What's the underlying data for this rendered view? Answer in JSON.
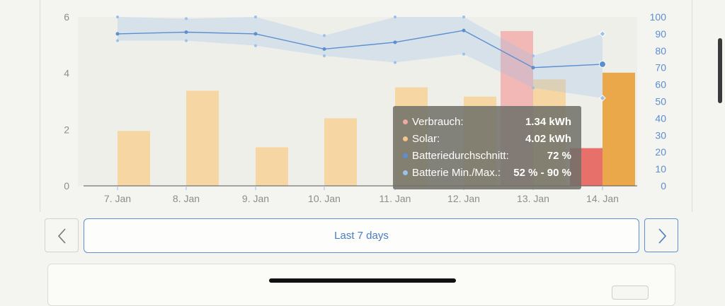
{
  "chart_data": {
    "type": "bar",
    "categories": [
      "7. Jan",
      "8. Jan",
      "9. Jan",
      "10. Jan",
      "11. Jan",
      "12. Jan",
      "13. Jan",
      "14. Jan"
    ],
    "y_left": {
      "ylim": [
        0,
        6
      ],
      "ticks": [
        0,
        2,
        4,
        6
      ]
    },
    "y_right": {
      "ylim": [
        0,
        100
      ],
      "ticks": [
        0,
        10,
        20,
        30,
        40,
        50,
        60,
        70,
        80,
        90,
        100
      ]
    },
    "grid": false,
    "series": [
      {
        "name": "Verbrauch",
        "kind": "bar",
        "axis": "left",
        "color": "#f2b8b6",
        "values": [
          0,
          0,
          0,
          0,
          0,
          0,
          5.5,
          1.34
        ]
      },
      {
        "name": "Solar",
        "kind": "bar",
        "axis": "left",
        "color": "#f6d7a4",
        "values": [
          1.95,
          3.38,
          1.37,
          2.4,
          3.5,
          3.17,
          3.78,
          4.02
        ]
      },
      {
        "name": "Batteriedurchschnitt",
        "kind": "line",
        "axis": "right",
        "color": "#5b8fd1",
        "values": [
          90,
          91,
          90,
          81,
          85,
          92,
          70,
          72
        ]
      },
      {
        "name": "Batterie Min./Max.",
        "kind": "range",
        "axis": "right",
        "color": "#9cc0ea",
        "min": [
          86,
          86,
          83,
          77,
          73,
          78,
          58,
          52
        ],
        "max": [
          100,
          99,
          100,
          89,
          100,
          100,
          77,
          90
        ]
      }
    ],
    "highlight_index": 7,
    "highlight_colors": {
      "Verbrauch": "#e8706a",
      "Solar": "#eba84a"
    },
    "tooltip": {
      "rows": [
        {
          "label": "Verbrauch:",
          "value": "1.34 kWh",
          "color": "#f2a9a6"
        },
        {
          "label": "Solar:",
          "value": "4.02 kWh",
          "color": "#f3c78a"
        },
        {
          "label": "Batteriedurchschnitt:",
          "value": "72 %",
          "color": "#5b8fd1"
        },
        {
          "label": "Batterie Min./Max.:",
          "value": "52 % - 90 %",
          "color": "#9cc0ea"
        }
      ]
    }
  },
  "controls": {
    "period_label": "Last 7 days",
    "prev_icon": "chevron-left-icon",
    "next_icon": "chevron-right-icon"
  }
}
